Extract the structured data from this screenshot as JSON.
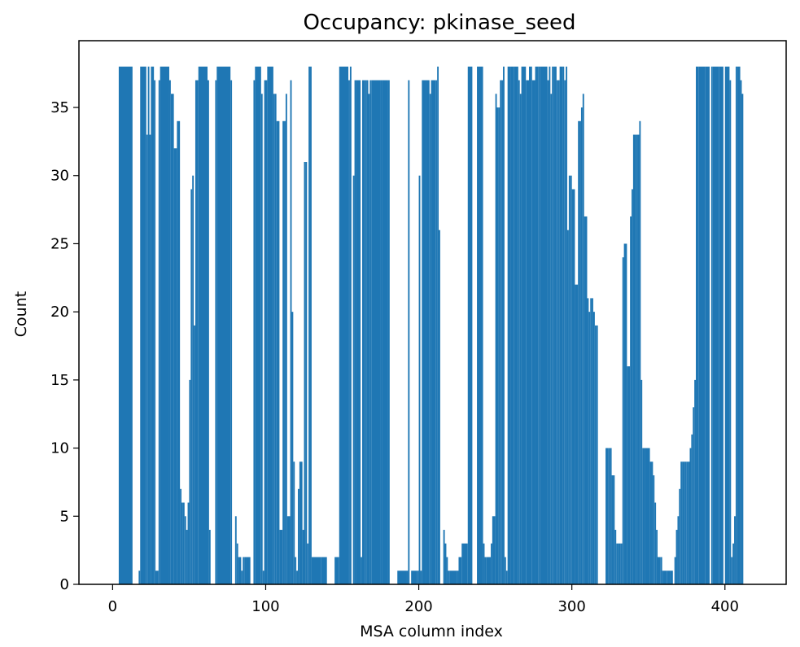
{
  "chart_data": {
    "type": "bar",
    "title": "Occupancy: pkinase_seed",
    "xlabel": "MSA column index",
    "ylabel": "Count",
    "xlim": [
      -22,
      440
    ],
    "ylim": [
      0,
      39.9
    ],
    "xticks": [
      0,
      100,
      200,
      300,
      400
    ],
    "yticks": [
      0,
      5,
      10,
      15,
      20,
      25,
      30,
      35
    ],
    "grid": false,
    "color": "#1f77b4",
    "segments": [
      [
        4,
        13,
        38
      ],
      [
        14,
        17,
        0
      ],
      [
        17,
        18,
        1
      ],
      [
        18,
        22,
        38
      ],
      [
        22,
        23,
        33
      ],
      [
        23,
        24,
        38
      ],
      [
        24,
        25,
        33
      ],
      [
        25,
        27,
        38
      ],
      [
        27,
        28,
        37
      ],
      [
        28,
        30,
        1
      ],
      [
        30,
        31,
        37
      ],
      [
        31,
        37,
        38
      ],
      [
        37,
        38,
        37
      ],
      [
        38,
        40,
        36
      ],
      [
        40,
        42,
        32
      ],
      [
        42,
        44,
        34
      ],
      [
        44,
        45,
        7
      ],
      [
        45,
        46,
        6
      ],
      [
        46,
        47,
        6
      ],
      [
        47,
        48,
        5
      ],
      [
        48,
        49,
        4
      ],
      [
        49,
        50,
        6
      ],
      [
        50,
        51,
        15
      ],
      [
        51,
        52,
        29
      ],
      [
        52,
        53,
        30
      ],
      [
        53,
        54,
        19
      ],
      [
        54,
        56,
        37
      ],
      [
        56,
        62,
        38
      ],
      [
        62,
        63,
        37
      ],
      [
        63,
        64,
        4
      ],
      [
        64,
        67,
        0
      ],
      [
        67,
        68,
        37
      ],
      [
        68,
        77,
        38
      ],
      [
        77,
        78,
        37
      ],
      [
        78,
        80,
        0
      ],
      [
        80,
        81,
        5
      ],
      [
        81,
        82,
        3
      ],
      [
        82,
        84,
        2
      ],
      [
        84,
        85,
        1
      ],
      [
        85,
        86,
        2
      ],
      [
        86,
        87,
        2
      ],
      [
        87,
        90,
        2
      ],
      [
        90,
        92,
        0
      ],
      [
        92,
        93,
        37
      ],
      [
        93,
        97,
        38
      ],
      [
        97,
        98,
        36
      ],
      [
        98,
        99,
        1
      ],
      [
        99,
        101,
        37
      ],
      [
        101,
        105,
        38
      ],
      [
        105,
        106,
        36
      ],
      [
        106,
        107,
        36
      ],
      [
        107,
        108,
        34
      ],
      [
        108,
        109,
        34
      ],
      [
        109,
        111,
        4
      ],
      [
        111,
        112,
        34
      ],
      [
        112,
        113,
        34
      ],
      [
        113,
        114,
        36
      ],
      [
        114,
        116,
        5
      ],
      [
        116,
        117,
        37
      ],
      [
        117,
        118,
        20
      ],
      [
        118,
        119,
        9
      ],
      [
        119,
        120,
        2
      ],
      [
        120,
        121,
        1
      ],
      [
        121,
        122,
        7
      ],
      [
        122,
        124,
        9
      ],
      [
        124,
        125,
        4
      ],
      [
        125,
        126,
        31
      ],
      [
        126,
        127,
        31
      ],
      [
        127,
        128,
        3
      ],
      [
        128,
        129,
        38
      ],
      [
        129,
        130,
        38
      ],
      [
        130,
        136,
        2
      ],
      [
        136,
        140,
        2
      ],
      [
        140,
        145,
        0
      ],
      [
        145,
        148,
        2
      ],
      [
        148,
        154,
        38
      ],
      [
        154,
        155,
        37
      ],
      [
        155,
        156,
        38
      ],
      [
        156,
        157,
        0
      ],
      [
        157,
        158,
        30
      ],
      [
        158,
        159,
        37
      ],
      [
        159,
        162,
        37
      ],
      [
        162,
        163,
        2
      ],
      [
        163,
        165,
        37
      ],
      [
        165,
        166,
        37
      ],
      [
        166,
        167,
        37
      ],
      [
        167,
        168,
        36
      ],
      [
        168,
        169,
        37
      ],
      [
        169,
        175,
        37
      ],
      [
        175,
        176,
        37
      ],
      [
        176,
        180,
        37
      ],
      [
        180,
        181,
        37
      ],
      [
        181,
        186,
        0
      ],
      [
        186,
        192,
        1
      ],
      [
        192,
        193,
        1
      ],
      [
        193,
        194,
        37
      ],
      [
        194,
        195,
        0
      ],
      [
        195,
        199,
        1
      ],
      [
        199,
        200,
        1
      ],
      [
        200,
        201,
        30
      ],
      [
        201,
        202,
        1
      ],
      [
        202,
        205,
        37
      ],
      [
        205,
        207,
        37
      ],
      [
        207,
        208,
        36
      ],
      [
        208,
        209,
        37
      ],
      [
        209,
        211,
        37
      ],
      [
        211,
        212,
        37
      ],
      [
        212,
        213,
        38
      ],
      [
        213,
        214,
        26
      ],
      [
        214,
        216,
        0
      ],
      [
        216,
        217,
        4
      ],
      [
        217,
        218,
        3
      ],
      [
        218,
        219,
        2
      ],
      [
        219,
        220,
        1
      ],
      [
        220,
        225,
        1
      ],
      [
        225,
        226,
        1
      ],
      [
        226,
        228,
        2
      ],
      [
        228,
        232,
        3
      ],
      [
        232,
        234,
        38
      ],
      [
        234,
        235,
        38
      ],
      [
        235,
        236,
        0
      ],
      [
        236,
        238,
        0
      ],
      [
        238,
        242,
        38
      ],
      [
        242,
        243,
        3
      ],
      [
        243,
        244,
        2
      ],
      [
        244,
        247,
        2
      ],
      [
        247,
        248,
        3
      ],
      [
        248,
        250,
        5
      ],
      [
        250,
        251,
        36
      ],
      [
        251,
        252,
        35
      ],
      [
        252,
        253,
        35
      ],
      [
        253,
        254,
        37
      ],
      [
        254,
        255,
        37
      ],
      [
        255,
        256,
        38
      ],
      [
        256,
        257,
        2
      ],
      [
        257,
        258,
        1
      ],
      [
        258,
        260,
        38
      ],
      [
        260,
        262,
        38
      ],
      [
        262,
        265,
        38
      ],
      [
        265,
        266,
        37
      ],
      [
        266,
        267,
        36
      ],
      [
        267,
        268,
        38
      ],
      [
        268,
        270,
        38
      ],
      [
        270,
        272,
        37
      ],
      [
        272,
        274,
        38
      ],
      [
        274,
        276,
        37
      ],
      [
        276,
        278,
        38
      ],
      [
        278,
        279,
        38
      ],
      [
        279,
        284,
        38
      ],
      [
        284,
        285,
        37
      ],
      [
        285,
        286,
        38
      ],
      [
        286,
        287,
        36
      ],
      [
        287,
        288,
        38
      ],
      [
        288,
        289,
        38
      ],
      [
        289,
        290,
        38
      ],
      [
        290,
        291,
        37
      ],
      [
        291,
        292,
        37
      ],
      [
        292,
        294,
        38
      ],
      [
        294,
        295,
        38
      ],
      [
        295,
        296,
        37
      ],
      [
        296,
        297,
        38
      ],
      [
        297,
        298,
        26
      ],
      [
        298,
        299,
        30
      ],
      [
        299,
        300,
        30
      ],
      [
        300,
        302,
        29
      ],
      [
        302,
        304,
        22
      ],
      [
        304,
        305,
        34
      ],
      [
        305,
        306,
        34
      ],
      [
        306,
        307,
        35
      ],
      [
        307,
        308,
        36
      ],
      [
        308,
        310,
        27
      ],
      [
        310,
        311,
        21
      ],
      [
        311,
        312,
        20
      ],
      [
        312,
        313,
        21
      ],
      [
        313,
        314,
        21
      ],
      [
        314,
        315,
        20
      ],
      [
        315,
        316,
        19
      ],
      [
        316,
        317,
        19
      ],
      [
        317,
        320,
        0
      ],
      [
        320,
        322,
        0
      ],
      [
        322,
        324,
        10
      ],
      [
        324,
        325,
        10
      ],
      [
        325,
        326,
        10
      ],
      [
        326,
        327,
        8
      ],
      [
        327,
        328,
        8
      ],
      [
        328,
        329,
        4
      ],
      [
        329,
        330,
        3
      ],
      [
        330,
        331,
        3
      ],
      [
        331,
        332,
        3
      ],
      [
        332,
        333,
        3
      ],
      [
        333,
        334,
        24
      ],
      [
        334,
        335,
        25
      ],
      [
        335,
        336,
        25
      ],
      [
        336,
        338,
        16
      ],
      [
        338,
        339,
        27
      ],
      [
        339,
        340,
        29
      ],
      [
        340,
        342,
        33
      ],
      [
        342,
        343,
        33
      ],
      [
        343,
        344,
        33
      ],
      [
        344,
        345,
        34
      ],
      [
        345,
        346,
        15
      ],
      [
        346,
        348,
        10
      ],
      [
        348,
        351,
        10
      ],
      [
        351,
        352,
        9
      ],
      [
        352,
        353,
        9
      ],
      [
        353,
        354,
        8
      ],
      [
        354,
        355,
        6
      ],
      [
        355,
        356,
        4
      ],
      [
        356,
        358,
        2
      ],
      [
        358,
        359,
        2
      ],
      [
        359,
        360,
        1
      ],
      [
        360,
        362,
        1
      ],
      [
        362,
        364,
        1
      ],
      [
        364,
        366,
        1
      ],
      [
        366,
        367,
        0
      ],
      [
        367,
        368,
        2
      ],
      [
        368,
        369,
        4
      ],
      [
        369,
        370,
        5
      ],
      [
        370,
        371,
        7
      ],
      [
        371,
        372,
        9
      ],
      [
        372,
        373,
        9
      ],
      [
        373,
        374,
        9
      ],
      [
        374,
        375,
        9
      ],
      [
        375,
        376,
        9
      ],
      [
        376,
        377,
        9
      ],
      [
        377,
        378,
        10
      ],
      [
        378,
        379,
        11
      ],
      [
        379,
        380,
        13
      ],
      [
        380,
        381,
        15
      ],
      [
        381,
        383,
        38
      ],
      [
        383,
        387,
        38
      ],
      [
        387,
        390,
        38
      ],
      [
        390,
        391,
        0
      ],
      [
        391,
        392,
        38
      ],
      [
        392,
        396,
        38
      ],
      [
        396,
        399,
        38
      ],
      [
        399,
        400,
        0
      ],
      [
        400,
        402,
        38
      ],
      [
        402,
        403,
        38
      ],
      [
        403,
        404,
        37
      ],
      [
        404,
        405,
        2
      ],
      [
        405,
        406,
        3
      ],
      [
        406,
        407,
        5
      ],
      [
        407,
        408,
        38
      ],
      [
        408,
        410,
        38
      ],
      [
        410,
        411,
        37
      ],
      [
        411,
        412,
        36
      ],
      [
        412,
        413,
        0
      ],
      [
        413,
        414,
        0
      ]
    ]
  }
}
